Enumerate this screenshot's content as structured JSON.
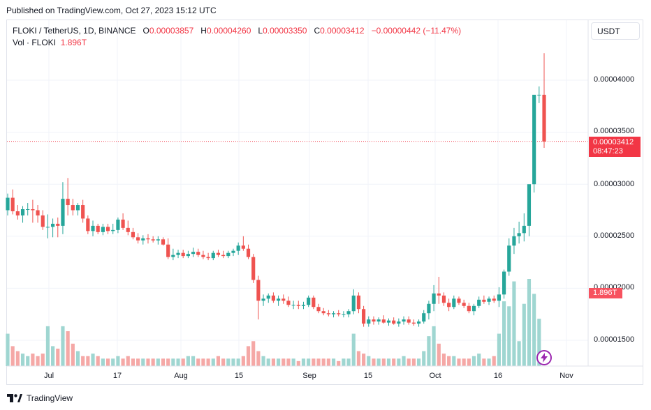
{
  "header": {
    "published": "Published on TradingView.com, Oct 27, 2023 15:12 UTC"
  },
  "legend": {
    "symbol": "FLOKI / TetherUS, 1D, BINANCE",
    "open_label": "O",
    "open": "0.00003857",
    "high_label": "H",
    "high": "0.00004260",
    "low_label": "L",
    "low": "0.00003350",
    "close_label": "C",
    "close": "0.00003412",
    "change": "−0.00000442 (−11.47%)",
    "vol_label": "Vol · FLOKI",
    "vol_value": "1.896T"
  },
  "currency": "USDT",
  "price_tag": {
    "price": "0.00003412",
    "countdown": "08:47:23"
  },
  "volume_tag": "1.896T",
  "footer": {
    "brand": "TradingView"
  },
  "colors": {
    "up": "#26a69a",
    "down": "#ef5350",
    "grid": "#f0f3fa",
    "last_price": "#f23645"
  },
  "chart_data": {
    "type": "candlestick",
    "title": "FLOKI / TetherUS, 1D, BINANCE",
    "y_axis_labels": [
      "0.00004000",
      "0.00003500",
      "0.00003000",
      "0.00002500",
      "0.00002000",
      "0.00001500"
    ],
    "x_axis_labels": [
      "Jul",
      "17",
      "Aug",
      "15",
      "Sep",
      "15",
      "Oct",
      "16",
      "Nov"
    ],
    "last_price": 3.412e-05,
    "ohlc_estimated": [
      [
        2.75e-05,
        2.91e-05,
        2.7e-05,
        2.87e-05
      ],
      [
        2.87e-05,
        2.95e-05,
        2.71e-05,
        2.74e-05
      ],
      [
        2.74e-05,
        2.8e-05,
        2.66e-05,
        2.7e-05
      ],
      [
        2.7e-05,
        2.79e-05,
        2.63e-05,
        2.76e-05
      ],
      [
        2.76e-05,
        2.82e-05,
        2.7e-05,
        2.76e-05
      ],
      [
        2.76e-05,
        2.85e-05,
        2.63e-05,
        2.75e-05
      ],
      [
        2.75e-05,
        2.8e-05,
        2.63e-05,
        2.7e-05
      ],
      [
        2.7e-05,
        2.75e-05,
        2.56e-05,
        2.59e-05
      ],
      [
        2.59e-05,
        2.71e-05,
        2.48e-05,
        2.59e-05
      ],
      [
        2.59e-05,
        2.67e-05,
        2.49e-05,
        2.62e-05
      ],
      [
        2.62e-05,
        2.68e-05,
        2.49e-05,
        2.6e-05
      ],
      [
        2.6e-05,
        3.02e-05,
        2.52e-05,
        2.86e-05
      ],
      [
        2.86e-05,
        3.06e-05,
        2.7e-05,
        2.8e-05
      ],
      [
        2.8e-05,
        2.86e-05,
        2.7e-05,
        2.75e-05
      ],
      [
        2.75e-05,
        2.82e-05,
        2.7e-05,
        2.8e-05
      ],
      [
        2.8e-05,
        2.85e-05,
        2.63e-05,
        2.67e-05
      ],
      [
        2.67e-05,
        2.7e-05,
        2.52e-05,
        2.55e-05
      ],
      [
        2.55e-05,
        2.65e-05,
        2.5e-05,
        2.6e-05
      ],
      [
        2.6e-05,
        2.62e-05,
        2.52e-05,
        2.54e-05
      ],
      [
        2.54e-05,
        2.62e-05,
        2.51e-05,
        2.59e-05
      ],
      [
        2.59e-05,
        2.62e-05,
        2.52e-05,
        2.55e-05
      ],
      [
        2.55e-05,
        2.62e-05,
        2.52e-05,
        2.56e-05
      ],
      [
        2.56e-05,
        2.68e-05,
        2.53e-05,
        2.66e-05
      ],
      [
        2.66e-05,
        2.72e-05,
        2.56e-05,
        2.58e-05
      ],
      [
        2.58e-05,
        2.65e-05,
        2.51e-05,
        2.54e-05
      ],
      [
        2.54e-05,
        2.58e-05,
        2.47e-05,
        2.49e-05
      ],
      [
        2.49e-05,
        2.53e-05,
        2.43e-05,
        2.46e-05
      ],
      [
        2.46e-05,
        2.51e-05,
        2.42e-05,
        2.48e-05
      ],
      [
        2.48e-05,
        2.52e-05,
        2.43e-05,
        2.47e-05
      ],
      [
        2.47e-05,
        2.5e-05,
        2.44e-05,
        2.46e-05
      ],
      [
        2.46e-05,
        2.5e-05,
        2.42e-05,
        2.47e-05
      ],
      [
        2.47e-05,
        2.49e-05,
        2.41e-05,
        2.42e-05
      ],
      [
        2.42e-05,
        2.48e-05,
        2.28e-05,
        2.3e-05
      ],
      [
        2.3e-05,
        2.38e-05,
        2.27e-05,
        2.32e-05
      ],
      [
        2.32e-05,
        2.37e-05,
        2.29e-05,
        2.34e-05
      ],
      [
        2.34e-05,
        2.37e-05,
        2.29e-05,
        2.31e-05
      ],
      [
        2.31e-05,
        2.36e-05,
        2.29e-05,
        2.33e-05
      ],
      [
        2.33e-05,
        2.39e-05,
        2.3e-05,
        2.35e-05
      ],
      [
        2.35e-05,
        2.38e-05,
        2.3e-05,
        2.32e-05
      ],
      [
        2.32e-05,
        2.36e-05,
        2.28e-05,
        2.3e-05
      ],
      [
        2.3e-05,
        2.34e-05,
        2.27e-05,
        2.29e-05
      ],
      [
        2.29e-05,
        2.36e-05,
        2.27e-05,
        2.34e-05
      ],
      [
        2.34e-05,
        2.37e-05,
        2.3e-05,
        2.32e-05
      ],
      [
        2.32e-05,
        2.36e-05,
        2.29e-05,
        2.31e-05
      ],
      [
        2.31e-05,
        2.36e-05,
        2.29e-05,
        2.34e-05
      ],
      [
        2.34e-05,
        2.38e-05,
        2.31e-05,
        2.36e-05
      ],
      [
        2.36e-05,
        2.44e-05,
        2.32e-05,
        2.41e-05
      ],
      [
        2.41e-05,
        2.5e-05,
        2.36e-05,
        2.38e-05
      ],
      [
        2.38e-05,
        2.42e-05,
        2.28e-05,
        2.3e-05
      ],
      [
        2.3e-05,
        2.33e-05,
        2.05e-05,
        2.08e-05
      ],
      [
        2.08e-05,
        2.12e-05,
        1.7e-05,
        1.88e-05
      ],
      [
        1.88e-05,
        1.94e-05,
        1.83e-05,
        1.9e-05
      ],
      [
        1.9e-05,
        1.95e-05,
        1.86e-05,
        1.93e-05
      ],
      [
        1.93e-05,
        1.96e-05,
        1.86e-05,
        1.88e-05
      ],
      [
        1.88e-05,
        1.93e-05,
        1.83e-05,
        1.9e-05
      ],
      [
        1.9e-05,
        1.94e-05,
        1.85e-05,
        1.88e-05
      ],
      [
        1.88e-05,
        1.92e-05,
        1.82e-05,
        1.84e-05
      ],
      [
        1.84e-05,
        1.88e-05,
        1.8e-05,
        1.84e-05
      ],
      [
        1.84e-05,
        1.88e-05,
        1.8e-05,
        1.83e-05
      ],
      [
        1.83e-05,
        1.87e-05,
        1.8e-05,
        1.84e-05
      ],
      [
        1.84e-05,
        1.93e-05,
        1.82e-05,
        1.91e-05
      ],
      [
        1.91e-05,
        1.93e-05,
        1.8e-05,
        1.82e-05
      ],
      [
        1.82e-05,
        1.85e-05,
        1.76e-05,
        1.78e-05
      ],
      [
        1.78e-05,
        1.81e-05,
        1.74e-05,
        1.76e-05
      ],
      [
        1.76e-05,
        1.79e-05,
        1.73e-05,
        1.75e-05
      ],
      [
        1.75e-05,
        1.78e-05,
        1.72e-05,
        1.76e-05
      ],
      [
        1.76e-05,
        1.79e-05,
        1.73e-05,
        1.75e-05
      ],
      [
        1.75e-05,
        1.78e-05,
        1.72e-05,
        1.75e-05
      ],
      [
        1.75e-05,
        1.8e-05,
        1.72e-05,
        1.78e-05
      ],
      [
        1.78e-05,
        1.99e-05,
        1.75e-05,
        1.93e-05
      ],
      [
        1.93e-05,
        1.96e-05,
        1.76e-05,
        1.8e-05
      ],
      [
        1.8e-05,
        1.83e-05,
        1.63e-05,
        1.66e-05
      ],
      [
        1.66e-05,
        1.73e-05,
        1.63e-05,
        1.7e-05
      ],
      [
        1.7e-05,
        1.73e-05,
        1.65e-05,
        1.68e-05
      ],
      [
        1.68e-05,
        1.72e-05,
        1.65e-05,
        1.7e-05
      ],
      [
        1.7e-05,
        1.74e-05,
        1.66e-05,
        1.67e-05
      ],
      [
        1.67e-05,
        1.71e-05,
        1.64e-05,
        1.69e-05
      ],
      [
        1.69e-05,
        1.72e-05,
        1.65e-05,
        1.66e-05
      ],
      [
        1.66e-05,
        1.71e-05,
        1.63e-05,
        1.68e-05
      ],
      [
        1.68e-05,
        1.73e-05,
        1.65e-05,
        1.7e-05
      ],
      [
        1.7e-05,
        1.73e-05,
        1.65e-05,
        1.67e-05
      ],
      [
        1.67e-05,
        1.7e-05,
        1.64e-05,
        1.66e-05
      ],
      [
        1.66e-05,
        1.7e-05,
        1.63e-05,
        1.68e-05
      ],
      [
        1.68e-05,
        1.79e-05,
        1.66e-05,
        1.76e-05
      ],
      [
        1.76e-05,
        1.88e-05,
        1.7e-05,
        1.85e-05
      ],
      [
        1.85e-05,
        2.03e-05,
        1.78e-05,
        1.95e-05
      ],
      [
        1.95e-05,
        2.11e-05,
        1.85e-05,
        1.93e-05
      ],
      [
        1.93e-05,
        1.96e-05,
        1.83e-05,
        1.86e-05
      ],
      [
        1.86e-05,
        1.9e-05,
        1.78e-05,
        1.82e-05
      ],
      [
        1.82e-05,
        1.93e-05,
        1.8e-05,
        1.9e-05
      ],
      [
        1.9e-05,
        1.92e-05,
        1.84e-05,
        1.86e-05
      ],
      [
        1.86e-05,
        1.89e-05,
        1.81e-05,
        1.83e-05
      ],
      [
        1.83e-05,
        1.86e-05,
        1.76e-05,
        1.78e-05
      ],
      [
        1.78e-05,
        1.85e-05,
        1.74e-05,
        1.83e-05
      ],
      [
        1.83e-05,
        1.92e-05,
        1.81e-05,
        1.89e-05
      ],
      [
        1.89e-05,
        1.93e-05,
        1.85e-05,
        1.87e-05
      ],
      [
        1.87e-05,
        1.92e-05,
        1.84e-05,
        1.9e-05
      ],
      [
        1.9e-05,
        1.93e-05,
        1.86e-05,
        1.88e-05
      ],
      [
        1.88e-05,
        2.01e-05,
        1.82e-05,
        1.94e-05
      ],
      [
        1.94e-05,
        2.18e-05,
        1.9e-05,
        2.16e-05
      ],
      [
        2.16e-05,
        2.48e-05,
        2.12e-05,
        2.41e-05
      ],
      [
        2.41e-05,
        2.58e-05,
        2.33e-05,
        2.5e-05
      ],
      [
        2.5e-05,
        2.64e-05,
        2.43e-05,
        2.53e-05
      ],
      [
        2.53e-05,
        2.72e-05,
        2.45e-05,
        2.6e-05
      ],
      [
        2.6e-05,
        2.7e-05,
        2.5e-05,
        3e-05
      ],
      [
        3e-05,
        3.2e-05,
        2.92e-05,
        3.86e-05
      ],
      [
        3.86e-05,
        3.94e-05,
        3.78e-05,
        3.86e-05
      ],
      [
        3.86e-05,
        4.26e-05,
        3.35e-05,
        3.41e-05
      ]
    ],
    "volume_estimated": [
      1.3,
      0.8,
      0.6,
      0.5,
      0.4,
      0.5,
      0.4,
      0.5,
      1.6,
      0.8,
      0.7,
      1.6,
      1.4,
      0.9,
      0.6,
      0.4,
      0.4,
      0.5,
      0.4,
      0.3,
      0.3,
      0.3,
      0.4,
      0.3,
      0.4,
      0.3,
      0.3,
      0.3,
      0.3,
      0.3,
      0.3,
      0.3,
      0.3,
      0.3,
      0.3,
      0.3,
      0.4,
      0.4,
      0.3,
      0.3,
      0.3,
      0.3,
      0.4,
      0.3,
      0.3,
      0.3,
      0.3,
      0.4,
      0.8,
      1.0,
      0.6,
      0.4,
      0.3,
      0.3,
      0.3,
      0.3,
      0.3,
      0.3,
      0.2,
      0.3,
      0.3,
      0.3,
      0.3,
      0.3,
      0.3,
      0.3,
      0.2,
      0.3,
      0.3,
      1.3,
      0.6,
      0.5,
      0.4,
      0.3,
      0.3,
      0.3,
      0.3,
      0.3,
      0.3,
      0.4,
      0.3,
      0.3,
      0.3,
      0.6,
      1.2,
      1.6,
      0.9,
      0.5,
      0.4,
      0.4,
      0.3,
      0.3,
      0.3,
      0.4,
      0.5,
      0.3,
      0.3,
      0.4,
      1.3,
      2.6,
      2.4,
      3.4,
      1.0,
      2.5,
      3.5,
      2.9,
      1.9
    ]
  }
}
